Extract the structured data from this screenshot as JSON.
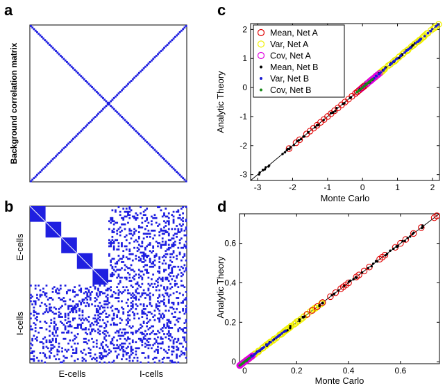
{
  "panel_labels": {
    "a": "a",
    "b": "b",
    "c": "c",
    "d": "d"
  },
  "colors": {
    "matrix": "#1f1fe0",
    "mean_a": "#e00000",
    "var_a": "#f0f000",
    "cov_a": "#e000e0",
    "mean_b": "#000000",
    "var_b": "#1a1ad0",
    "cov_b": "#1a8a1a"
  },
  "chart_data": [
    {
      "panel": "a",
      "type": "heatmap",
      "ylabel": "Background correlation matrix",
      "description_values": {
        "pattern": "diagonal-and-anti-diagonal",
        "size": 100
      }
    },
    {
      "panel": "b",
      "type": "heatmap",
      "xlabels": [
        "E-cells",
        "I-cells"
      ],
      "ylabels": [
        "E-cells",
        "I-cells"
      ],
      "description_values": {
        "e_blocks": 5,
        "e_fraction": 0.5,
        "random_density": 0.2
      }
    },
    {
      "panel": "c",
      "type": "scatter",
      "xlabel": "Monte Carlo",
      "ylabel": "Analytic Theory",
      "xlim": [
        -3.2,
        2.2
      ],
      "ylim": [
        -3.2,
        2.2
      ],
      "xticks": [
        "-3",
        "-2",
        "-1",
        "0",
        "1",
        "2"
      ],
      "yticks": [
        "-3",
        "-2",
        "-1",
        "0",
        "1",
        "2"
      ],
      "legend_position": "top-left",
      "series": [
        {
          "name": "Mean, Net A",
          "marker": "circle",
          "x": [
            -2.1,
            -1.9,
            -1.8,
            -1.6,
            -1.5,
            -1.4,
            -1.3,
            -1.2,
            -1.1,
            -1.0,
            -0.9,
            -0.8,
            -0.7,
            -0.6,
            -0.5,
            -0.4,
            -0.3,
            -0.2,
            -0.15,
            -0.1,
            0.0,
            0.05
          ],
          "y": [
            -2.1,
            -1.9,
            -1.8,
            -1.6,
            -1.5,
            -1.4,
            -1.3,
            -1.2,
            -1.1,
            -1.0,
            -0.9,
            -0.8,
            -0.7,
            -0.6,
            -0.5,
            -0.4,
            -0.3,
            -0.2,
            -0.15,
            -0.1,
            0.0,
            0.05
          ]
        },
        {
          "name": "Var, Net A",
          "marker": "circle",
          "range": [
            0.0,
            2.2
          ]
        },
        {
          "name": "Cov, Net A",
          "marker": "circle",
          "range": [
            -0.2,
            0.5
          ]
        },
        {
          "name": "Mean, Net B",
          "marker": "dot",
          "range": [
            -3.1,
            1.5
          ]
        },
        {
          "name": "Var, Net B",
          "marker": "dot",
          "range": [
            0.0,
            2.15
          ]
        },
        {
          "name": "Cov, Net B",
          "marker": "dot",
          "range": [
            -0.2,
            0.3
          ]
        }
      ]
    },
    {
      "panel": "d",
      "type": "scatter",
      "xlabel": "Monte Carlo",
      "ylabel": "Analytic Theory",
      "xlim": [
        -0.02,
        0.75
      ],
      "ylim": [
        -0.01,
        0.75
      ],
      "xticks": [
        "0",
        "0.2",
        "0.4",
        "0.6"
      ],
      "yticks": [
        "0",
        "0.2",
        "0.4",
        "0.6"
      ],
      "series": [
        {
          "name": "Mean, Net A",
          "marker": "circle",
          "x": [
            0.24,
            0.26,
            0.28,
            0.3,
            0.33,
            0.35,
            0.37,
            0.38,
            0.39,
            0.4,
            0.43,
            0.44,
            0.46,
            0.48,
            0.52,
            0.53,
            0.54,
            0.58,
            0.6,
            0.62,
            0.65,
            0.68,
            0.73,
            0.74
          ]
        },
        {
          "name": "Var, Net A",
          "marker": "circle",
          "range": [
            0.0,
            0.3
          ]
        },
        {
          "name": "Cov, Net A",
          "marker": "circle",
          "range": [
            -0.02,
            0.03
          ]
        },
        {
          "name": "Mean, Net B",
          "marker": "dot",
          "range": [
            0.0,
            0.7
          ]
        },
        {
          "name": "Var, Net B",
          "marker": "dot",
          "range": [
            0.0,
            0.16
          ]
        },
        {
          "name": "Cov, Net B",
          "marker": "dot",
          "range": [
            -0.02,
            0.02
          ]
        }
      ]
    }
  ]
}
